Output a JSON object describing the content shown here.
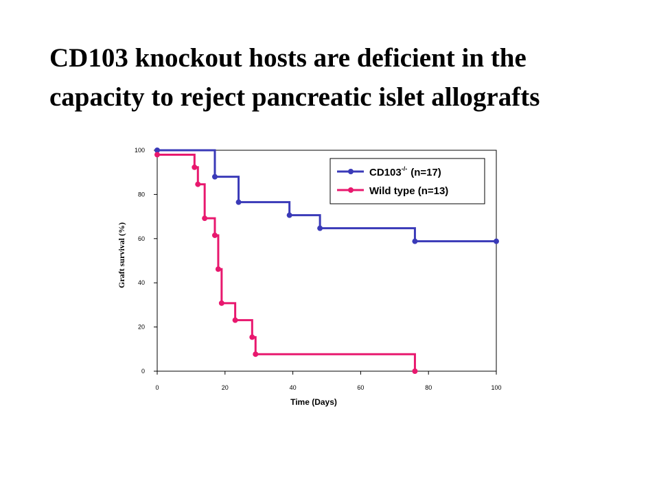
{
  "title": {
    "line1": "CD103 knockout hosts are deficient in the",
    "line2": "capacity to reject pancreatic islet allografts"
  },
  "colors": {
    "cd103": "#3a3ab8",
    "wildtype": "#e8186e"
  },
  "chart_data": {
    "type": "line",
    "step": true,
    "xlabel": "Time (Days)",
    "ylabel": "Graft survival (%)",
    "xlim": [
      0,
      100
    ],
    "ylim": [
      0,
      100
    ],
    "xticks": [
      "0",
      "20",
      "40",
      "60",
      "80",
      "100"
    ],
    "yticks": [
      "0",
      "20",
      "40",
      "60",
      "80",
      "100"
    ],
    "grid": false,
    "legend_position": "top-right",
    "series": [
      {
        "name": "CD103",
        "name_sup": "-/-",
        "name_suffix": "(n=17)",
        "color_key": "cd103",
        "points": [
          [
            0,
            100
          ],
          [
            17,
            88
          ],
          [
            24,
            76.5
          ],
          [
            39,
            70.6
          ],
          [
            48,
            64.7
          ],
          [
            76,
            58.8
          ],
          [
            100,
            58.8
          ]
        ]
      },
      {
        "name": "Wild type (n=13)",
        "color_key": "wildtype",
        "points": [
          [
            0,
            98
          ],
          [
            11,
            92.3
          ],
          [
            12,
            84.6
          ],
          [
            14,
            69.2
          ],
          [
            17,
            61.5
          ],
          [
            18,
            46.2
          ],
          [
            19,
            30.8
          ],
          [
            23,
            23.1
          ],
          [
            28,
            15.4
          ],
          [
            29,
            7.7
          ],
          [
            76,
            0
          ]
        ]
      }
    ]
  }
}
